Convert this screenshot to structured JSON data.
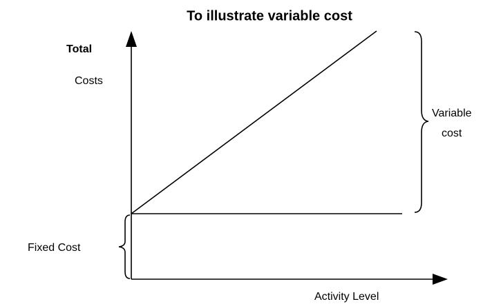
{
  "title": "To illustrate variable cost",
  "y_axis": {
    "label_top": "Total",
    "label": "Costs"
  },
  "x_axis": {
    "label": "Activity Level"
  },
  "annotations": {
    "variable_cost": [
      "Variable",
      "cost"
    ],
    "fixed_cost": "Fixed Cost"
  }
}
